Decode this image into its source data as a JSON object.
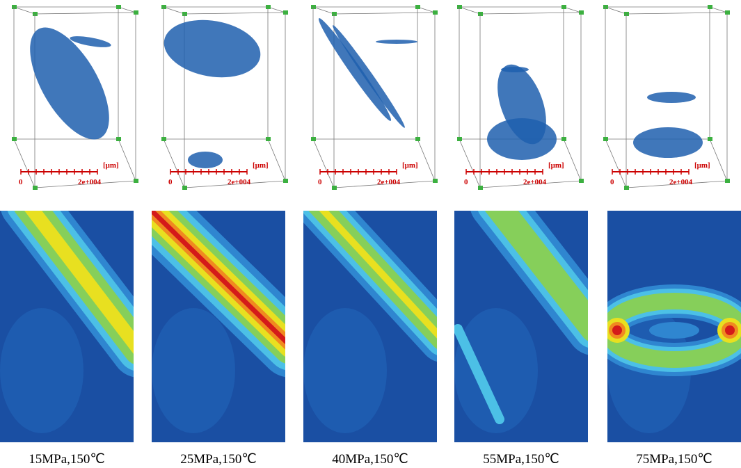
{
  "panels": [
    {
      "scale_start": "0",
      "scale_end": "2e+004",
      "scale_unit": "[μm]",
      "caption": "15MPa,150℃"
    },
    {
      "scale_start": "0",
      "scale_end": "2e+004",
      "scale_unit": "[μm]",
      "caption": "25MPa,150℃"
    },
    {
      "scale_start": "0",
      "scale_end": "2e+004",
      "scale_unit": "[μm]",
      "caption": "40MPa,150℃"
    },
    {
      "scale_start": "0",
      "scale_end": "2e+004",
      "scale_unit": "[μm]",
      "caption": "55MPa,150℃"
    },
    {
      "scale_start": "0",
      "scale_end": "2e+004",
      "scale_unit": "[μm]",
      "caption": "75MPa,150℃"
    }
  ]
}
